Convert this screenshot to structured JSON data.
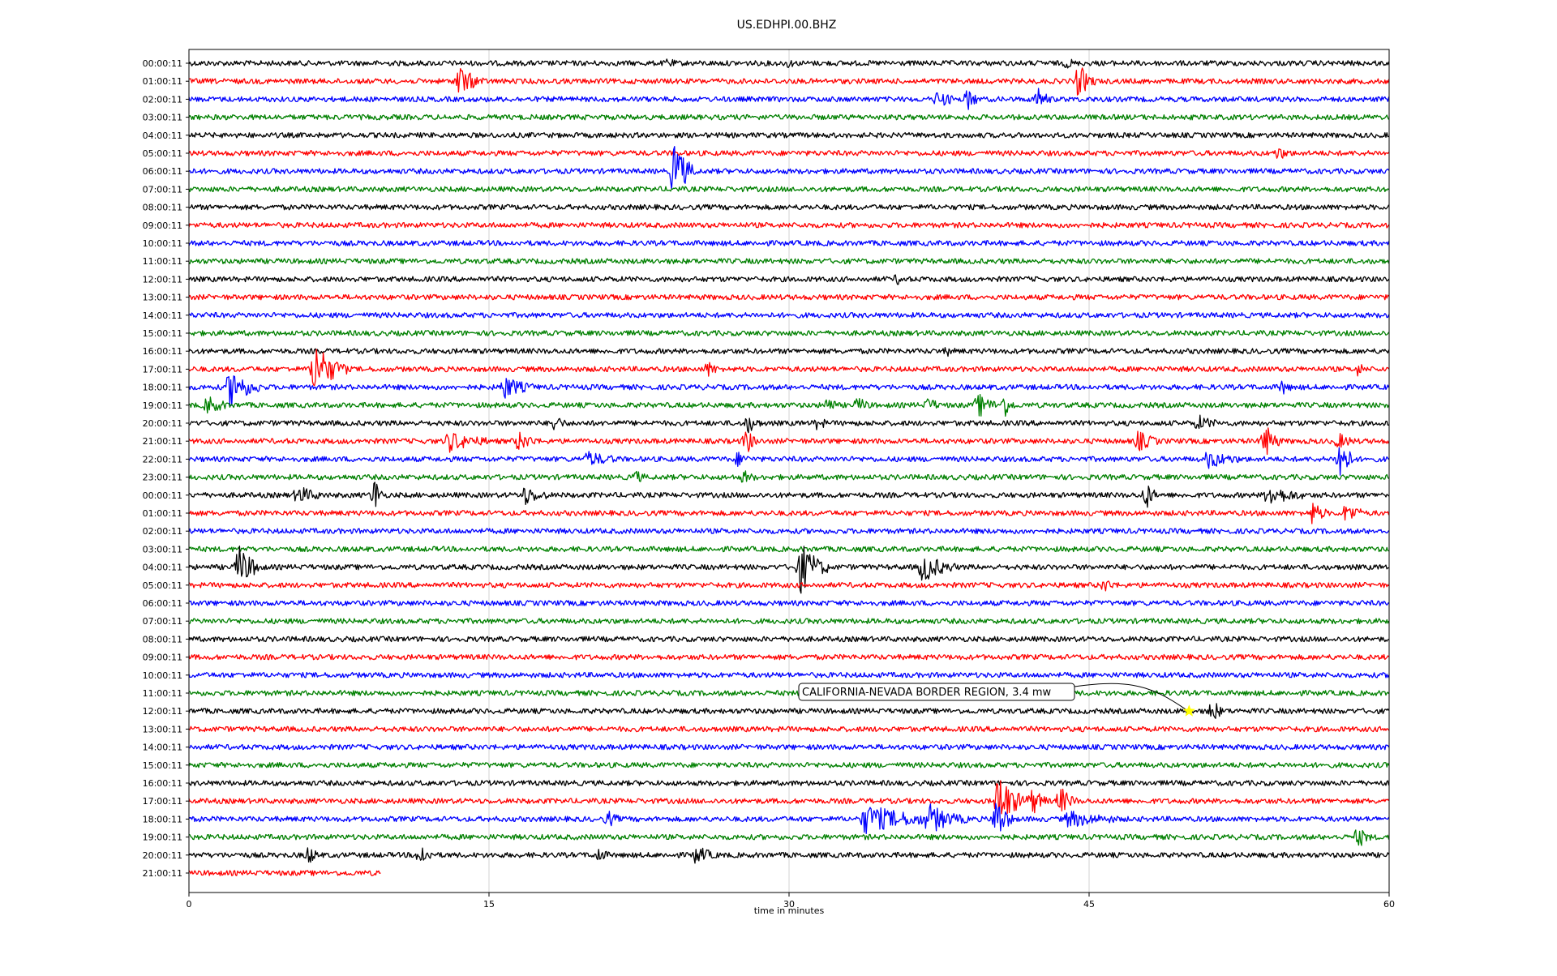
{
  "chart_data": {
    "type": "line",
    "title": "US.EDHPI.00.BHZ",
    "xlabel": "time in minutes",
    "ylabel": "",
    "xlim": [
      0,
      60
    ],
    "xticks": [
      0,
      15,
      30,
      45,
      60
    ],
    "grid": "vertical",
    "row_colors": [
      "#000000",
      "#ff0000",
      "#0000ff",
      "#008000"
    ],
    "rows": [
      {
        "label": "00:00:11",
        "end": 60,
        "events": [
          [
            24,
            0.4,
            0.3
          ],
          [
            30,
            0.3,
            0.3
          ],
          [
            44,
            0.4,
            0.3
          ]
        ]
      },
      {
        "label": "01:00:11",
        "end": 60,
        "events": [
          [
            13.5,
            1.5,
            1.2
          ],
          [
            44.5,
            1.6,
            0.8
          ]
        ]
      },
      {
        "label": "02:00:11",
        "end": 60,
        "events": [
          [
            37.5,
            0.8,
            0.8
          ],
          [
            39,
            1.0,
            0.5
          ],
          [
            42.5,
            1.0,
            0.6
          ]
        ]
      },
      {
        "label": "03:00:11",
        "end": 60,
        "events": []
      },
      {
        "label": "04:00:11",
        "end": 60,
        "events": []
      },
      {
        "label": "05:00:11",
        "end": 60,
        "events": [
          [
            54.5,
            0.5,
            0.6
          ]
        ]
      },
      {
        "label": "06:00:11",
        "end": 60,
        "events": [
          [
            24.3,
            3.0,
            1.0
          ]
        ]
      },
      {
        "label": "07:00:11",
        "end": 60,
        "events": []
      },
      {
        "label": "08:00:11",
        "end": 60,
        "events": []
      },
      {
        "label": "09:00:11",
        "end": 60,
        "events": []
      },
      {
        "label": "10:00:11",
        "end": 60,
        "events": []
      },
      {
        "label": "11:00:11",
        "end": 60,
        "events": []
      },
      {
        "label": "12:00:11",
        "end": 60,
        "events": [
          [
            35.5,
            0.4,
            0.3
          ]
        ]
      },
      {
        "label": "13:00:11",
        "end": 60,
        "events": []
      },
      {
        "label": "14:00:11",
        "end": 60,
        "events": []
      },
      {
        "label": "15:00:11",
        "end": 60,
        "events": []
      },
      {
        "label": "16:00:11",
        "end": 60,
        "events": [
          [
            38,
            0.3,
            0.3
          ]
        ]
      },
      {
        "label": "17:00:11",
        "end": 60,
        "events": [
          [
            6.3,
            2.6,
            1.6
          ],
          [
            26,
            0.6,
            0.5
          ],
          [
            58.5,
            0.6,
            0.3
          ]
        ]
      },
      {
        "label": "18:00:11",
        "end": 60,
        "events": [
          [
            2.1,
            1.8,
            1.5
          ],
          [
            15.8,
            1.0,
            1.4
          ],
          [
            54.7,
            0.6,
            0.4
          ]
        ]
      },
      {
        "label": "19:00:11",
        "end": 60,
        "events": [
          [
            1,
            0.8,
            1.0
          ],
          [
            32,
            0.8,
            0.4
          ],
          [
            33.5,
            0.6,
            0.6
          ],
          [
            37,
            0.6,
            0.6
          ],
          [
            39.5,
            1.0,
            1.0
          ],
          [
            40.8,
            1.0,
            0.5
          ]
        ]
      },
      {
        "label": "20:00:11",
        "end": 60,
        "events": [
          [
            18.3,
            0.8,
            0.5
          ],
          [
            28,
            0.8,
            0.6
          ],
          [
            31.5,
            0.6,
            0.4
          ],
          [
            50.5,
            0.6,
            1.0
          ]
        ]
      },
      {
        "label": "21:00:11",
        "end": 60,
        "events": [
          [
            13,
            0.9,
            2.0
          ],
          [
            16.5,
            0.8,
            1.0
          ],
          [
            27.9,
            1.2,
            0.5
          ],
          [
            47.5,
            0.9,
            1.0
          ],
          [
            53.8,
            1.6,
            0.8
          ],
          [
            57.5,
            0.6,
            0.8
          ]
        ]
      },
      {
        "label": "22:00:11",
        "end": 60,
        "events": [
          [
            20,
            0.6,
            1.5
          ],
          [
            27.5,
            0.6,
            0.5
          ],
          [
            51,
            0.8,
            1.5
          ],
          [
            57.6,
            2.6,
            0.6
          ]
        ]
      },
      {
        "label": "23:00:11",
        "end": 60,
        "events": [
          [
            22.4,
            0.5,
            0.4
          ],
          [
            27.8,
            0.5,
            0.5
          ]
        ]
      },
      {
        "label": "00:00:11",
        "end": 60,
        "events": [
          [
            5.5,
            0.8,
            1.2
          ],
          [
            9.3,
            1.8,
            0.4
          ],
          [
            16.8,
            0.8,
            1.2
          ],
          [
            47.9,
            1.2,
            0.5
          ],
          [
            54,
            0.9,
            1.8
          ]
        ]
      },
      {
        "label": "01:00:11",
        "end": 60,
        "events": [
          [
            56.2,
            1.1,
            0.7
          ],
          [
            57.9,
            0.9,
            0.9
          ]
        ]
      },
      {
        "label": "02:00:11",
        "end": 60,
        "events": []
      },
      {
        "label": "03:00:11",
        "end": 60,
        "events": []
      },
      {
        "label": "04:00:11",
        "end": 60,
        "events": [
          [
            2.5,
            2.0,
            1.2
          ],
          [
            30.6,
            2.4,
            1.4
          ],
          [
            36.7,
            1.4,
            1.6
          ]
        ]
      },
      {
        "label": "05:00:11",
        "end": 60,
        "events": [
          [
            45.8,
            0.5,
            0.6
          ]
        ]
      },
      {
        "label": "06:00:11",
        "end": 60,
        "events": []
      },
      {
        "label": "07:00:11",
        "end": 60,
        "events": []
      },
      {
        "label": "08:00:11",
        "end": 60,
        "events": []
      },
      {
        "label": "09:00:11",
        "end": 60,
        "events": []
      },
      {
        "label": "10:00:11",
        "end": 60,
        "events": []
      },
      {
        "label": "11:00:11",
        "end": 60,
        "events": []
      },
      {
        "label": "12:00:11",
        "end": 60,
        "events": [
          [
            51.2,
            1.1,
            0.5
          ]
        ]
      },
      {
        "label": "13:00:11",
        "end": 60,
        "events": []
      },
      {
        "label": "14:00:11",
        "end": 60,
        "events": []
      },
      {
        "label": "15:00:11",
        "end": 60,
        "events": []
      },
      {
        "label": "16:00:11",
        "end": 60,
        "events": []
      },
      {
        "label": "17:00:11",
        "end": 60,
        "events": [
          [
            40.5,
            2.6,
            1.4
          ],
          [
            42.2,
            1.2,
            0.8
          ],
          [
            43.6,
            1.2,
            0.8
          ]
        ]
      },
      {
        "label": "18:00:11",
        "end": 60,
        "events": [
          [
            21,
            0.6,
            0.6
          ],
          [
            33.8,
            1.3,
            4.0
          ],
          [
            37,
            1.1,
            2.0
          ],
          [
            40.4,
            2.2,
            0.8
          ],
          [
            44,
            0.7,
            2.5
          ]
        ]
      },
      {
        "label": "19:00:11",
        "end": 60,
        "events": [
          [
            58.5,
            0.9,
            0.6
          ]
        ]
      },
      {
        "label": "20:00:11",
        "end": 60,
        "events": [
          [
            6,
            0.8,
            0.5
          ],
          [
            11.6,
            1.0,
            0.6
          ],
          [
            25.4,
            0.8,
            1.0
          ],
          [
            20.5,
            0.6,
            0.5
          ]
        ]
      },
      {
        "label": "21:00:11",
        "end": 9.6,
        "events": []
      }
    ],
    "annotation": {
      "text": "CALIFORNIA-NEVADA BORDER REGION, 3.4 mw",
      "row": 36,
      "x": 50,
      "marker": "star",
      "marker_color": "#ffff00"
    }
  }
}
